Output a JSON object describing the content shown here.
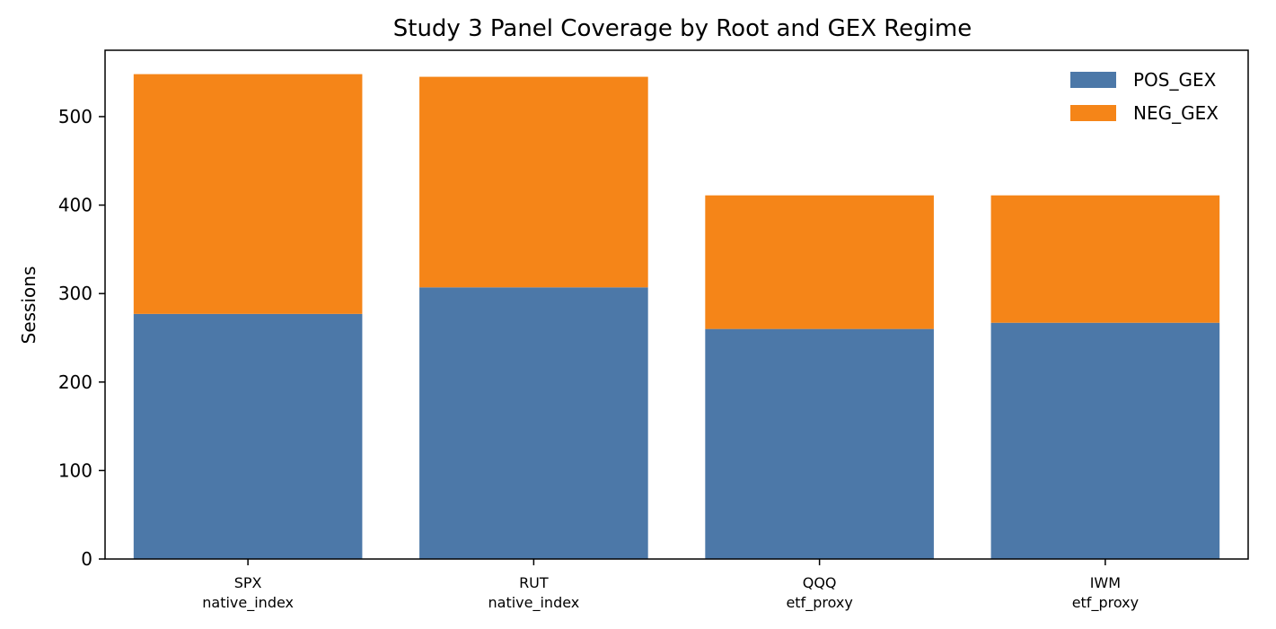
{
  "chart_data": {
    "type": "bar",
    "stacked": true,
    "title": "Study 3 Panel Coverage by Root and GEX Regime",
    "ylabel": "Sessions",
    "xlabel": "",
    "categories": [
      {
        "root": "SPX",
        "group": "native_index"
      },
      {
        "root": "RUT",
        "group": "native_index"
      },
      {
        "root": "QQQ",
        "group": "etf_proxy"
      },
      {
        "root": "IWM",
        "group": "etf_proxy"
      }
    ],
    "series": [
      {
        "name": "POS_GEX",
        "color": "#4c78a8",
        "values": [
          277,
          307,
          260,
          267
        ]
      },
      {
        "name": "NEG_GEX",
        "color": "#f58518",
        "values": [
          271,
          238,
          151,
          144
        ]
      }
    ],
    "ylim": [
      0,
      575
    ],
    "yticks": [
      0,
      100,
      200,
      300,
      400,
      500
    ],
    "grid": false,
    "legend_position": "top-right"
  }
}
